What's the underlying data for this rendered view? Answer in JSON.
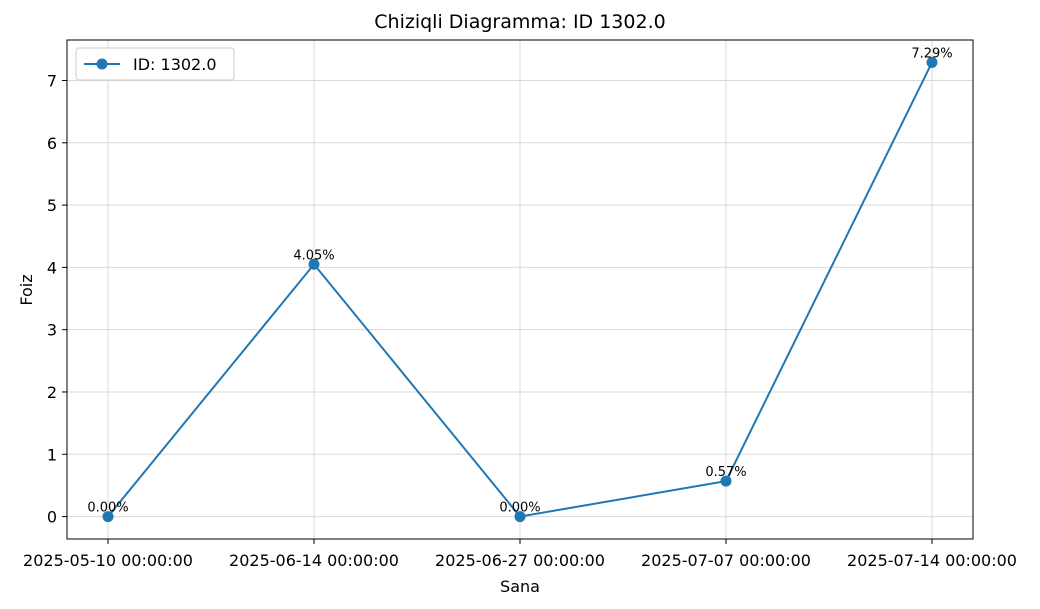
{
  "chart_data": {
    "type": "line",
    "title": "Chiziqli Diagramma: ID 1302.0",
    "xlabel": "Sana",
    "ylabel": "Foiz",
    "categories": [
      "2025-05-10 00:00:00",
      "2025-06-14 00:00:00",
      "2025-06-27 00:00:00",
      "2025-07-07 00:00:00",
      "2025-07-14 00:00:00"
    ],
    "series": [
      {
        "name": "ID: 1302.0",
        "values": [
          0.0,
          4.05,
          0.0,
          0.57,
          7.29
        ],
        "data_labels": [
          "0.00%",
          "4.05%",
          "0.00%",
          "0.57%",
          "7.29%"
        ],
        "color": "#1f77b4",
        "marker": "circle"
      }
    ],
    "ylim": [
      -0.36,
      7.65
    ],
    "yticks": [
      0,
      1,
      2,
      3,
      4,
      5,
      6,
      7
    ],
    "grid": true,
    "legend_position": "top-left"
  }
}
